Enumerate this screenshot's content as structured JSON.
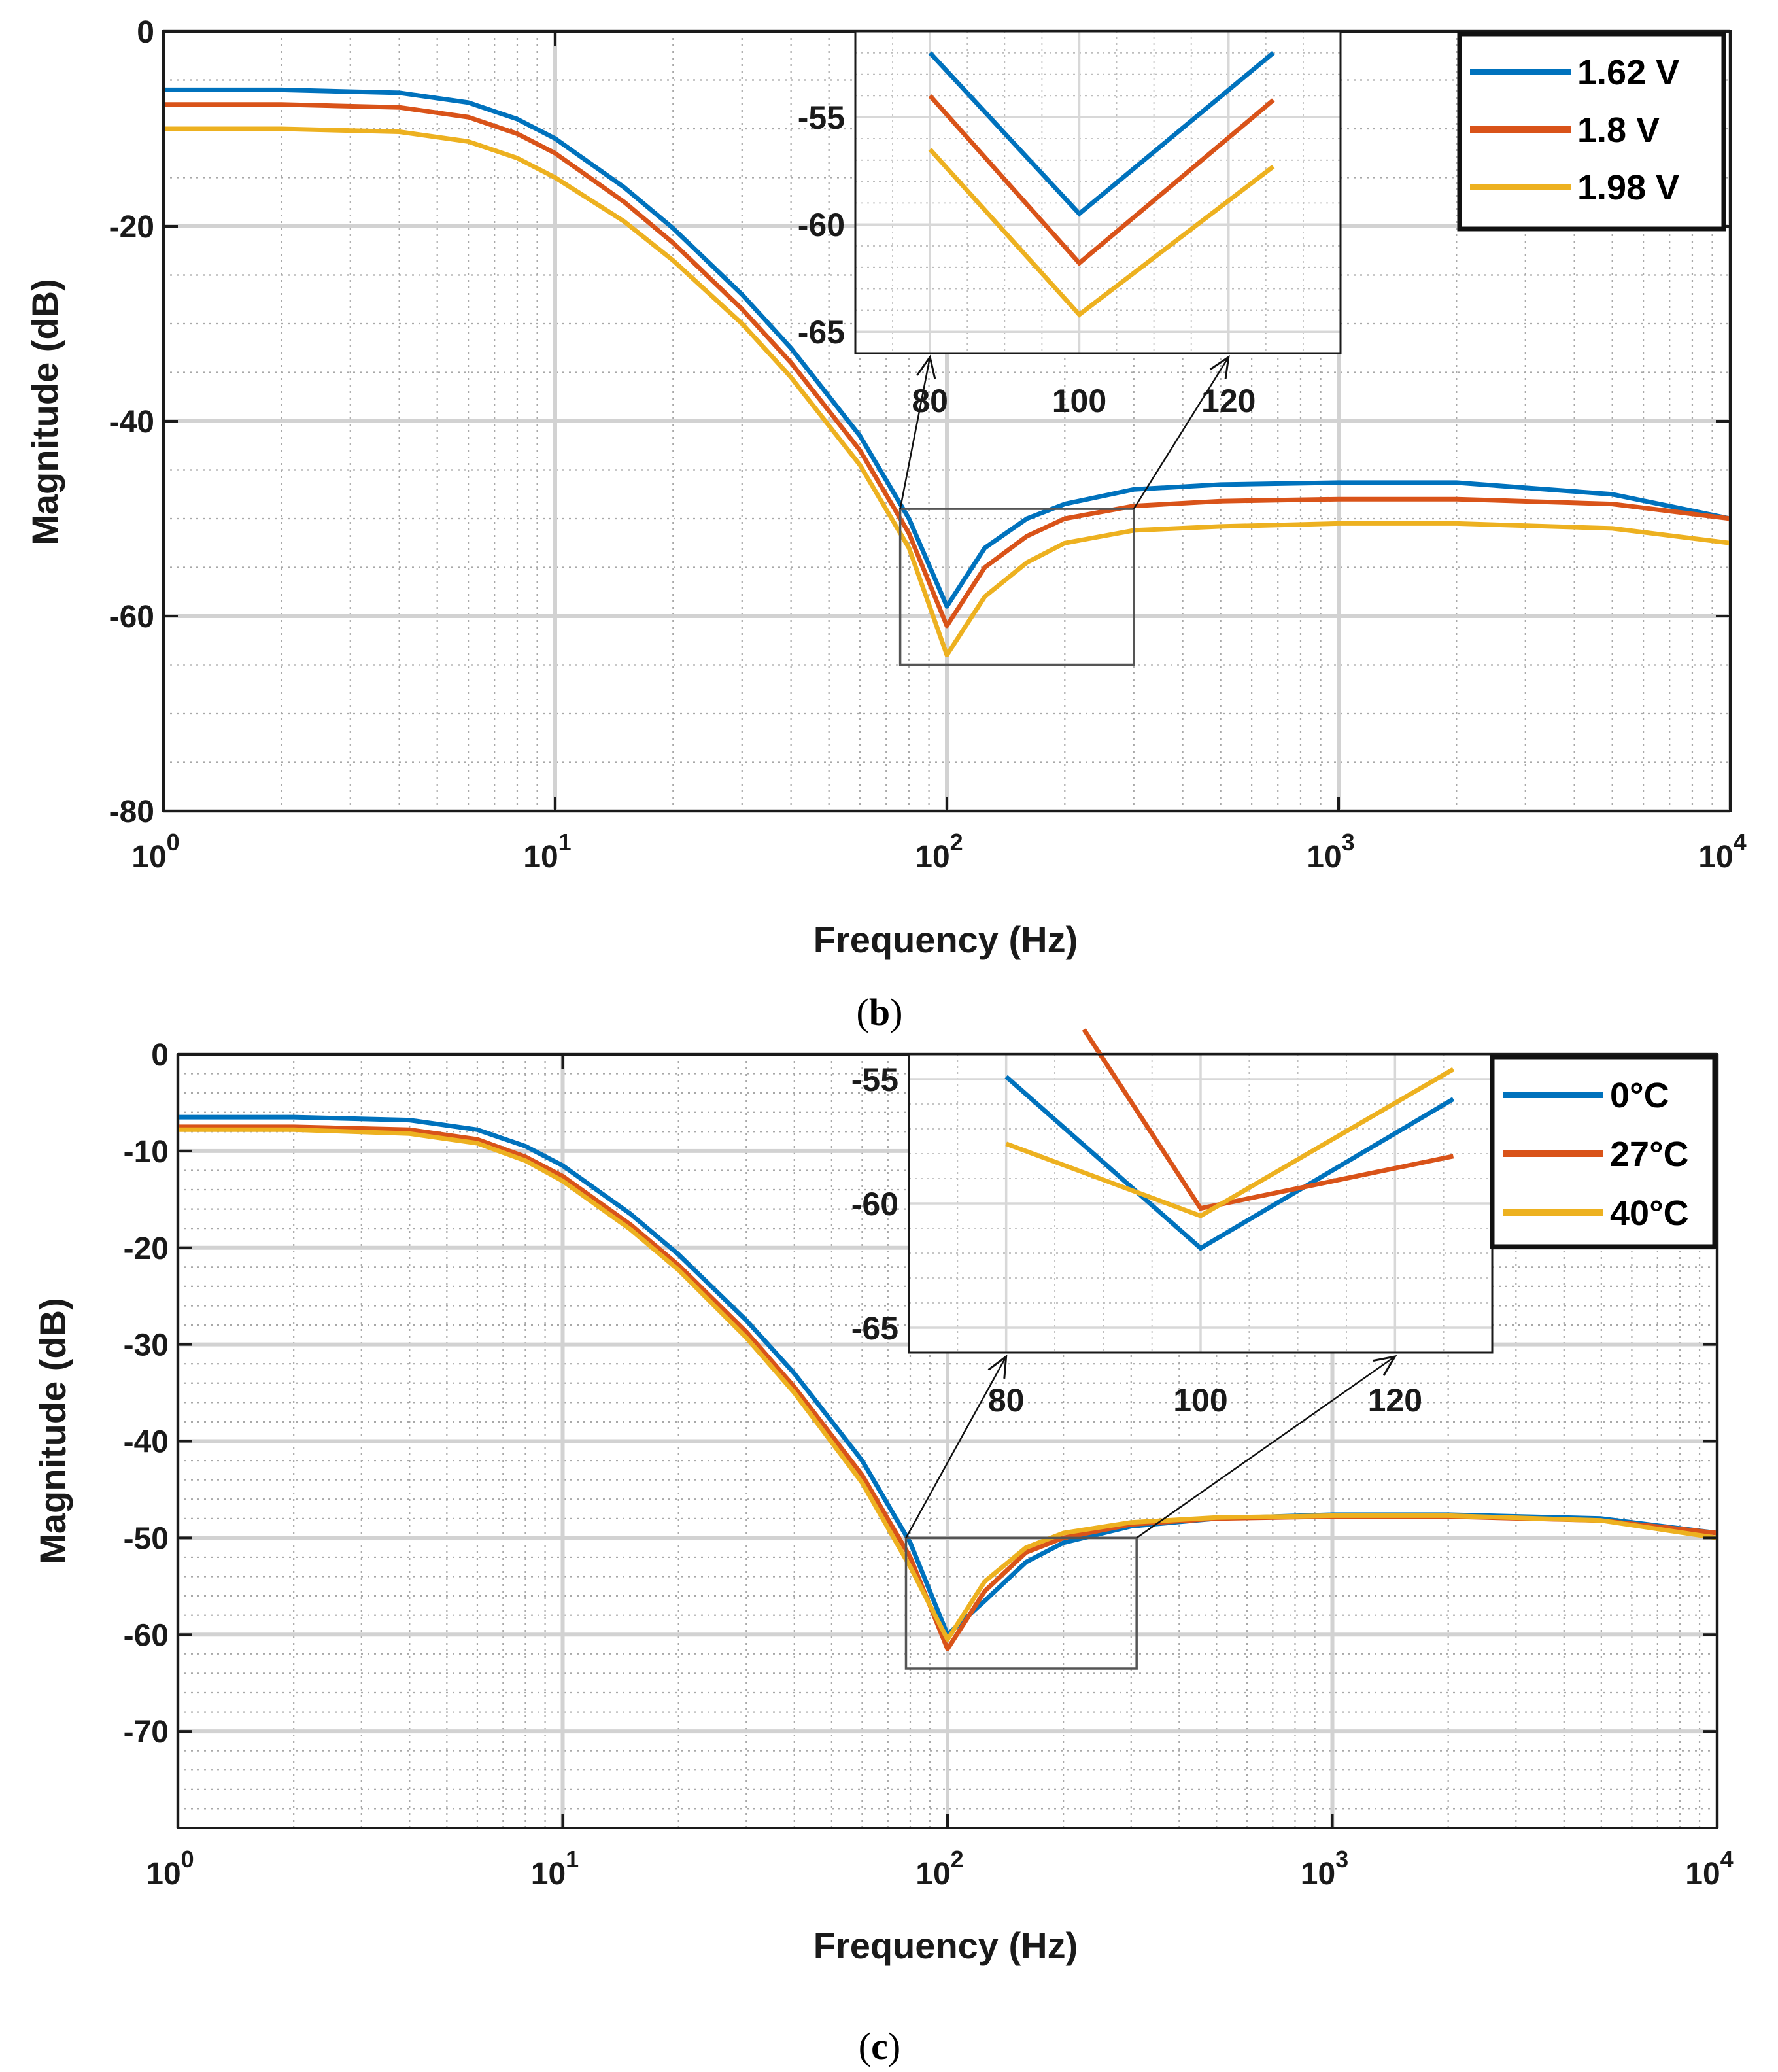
{
  "colors": {
    "blue": "#0072BD",
    "red": "#D95319",
    "yellow": "#EDB120",
    "grid_major": "#d2d2d2",
    "grid_minor": "#a8a8a8",
    "axis": "#1a1a1a"
  },
  "chart_data": [
    {
      "type": "line",
      "caption": "b",
      "xlabel": "Frequency (Hz)",
      "ylabel": "Magnitude (dB)",
      "xscale": "log",
      "xlim": [
        1,
        10000
      ],
      "ylim": [
        -80,
        0
      ],
      "xticks": [
        1,
        10,
        100,
        1000,
        10000
      ],
      "xtick_labels": [
        {
          "base": "10",
          "exp": "0"
        },
        {
          "base": "10",
          "exp": "1"
        },
        {
          "base": "10",
          "exp": "2"
        },
        {
          "base": "10",
          "exp": "3"
        },
        {
          "base": "10",
          "exp": "4"
        }
      ],
      "yticks": [
        0,
        -20,
        -40,
        -60,
        -80
      ],
      "ytick_labels": [
        "0",
        "-20",
        "-40",
        "-60",
        "-80"
      ],
      "ytick_minor_step": 5,
      "grid": true,
      "legend_position": "top-right",
      "series": [
        {
          "name": "1.62 V",
          "color": "#0072BD",
          "x": [
            1,
            2,
            4,
            6,
            8,
            10,
            15,
            20,
            30,
            40,
            60,
            80,
            100,
            125,
            160,
            200,
            300,
            500,
            1000,
            2000,
            5000,
            10000
          ],
          "y": [
            -6.0,
            -6.0,
            -6.3,
            -7.3,
            -9.0,
            -11.0,
            -16.0,
            -20.2,
            -27.0,
            -32.5,
            -41.5,
            -50.0,
            -59.0,
            -53.0,
            -50.0,
            -48.5,
            -47.0,
            -46.5,
            -46.3,
            -46.3,
            -47.5,
            -50.0
          ]
        },
        {
          "name": "1.8 V",
          "color": "#D95319",
          "x": [
            1,
            2,
            4,
            6,
            8,
            10,
            15,
            20,
            30,
            40,
            60,
            80,
            100,
            125,
            160,
            200,
            300,
            500,
            1000,
            2000,
            5000,
            10000
          ],
          "y": [
            -7.5,
            -7.5,
            -7.8,
            -8.8,
            -10.5,
            -12.5,
            -17.5,
            -21.7,
            -28.5,
            -34.0,
            -43.0,
            -51.5,
            -61.0,
            -55.0,
            -51.8,
            -50.0,
            -48.7,
            -48.2,
            -48.0,
            -48.0,
            -48.5,
            -50.0
          ]
        },
        {
          "name": "1.98 V",
          "color": "#EDB120",
          "x": [
            1,
            2,
            4,
            6,
            8,
            10,
            15,
            20,
            30,
            40,
            60,
            80,
            100,
            125,
            160,
            200,
            300,
            500,
            1000,
            2000,
            5000,
            10000
          ],
          "y": [
            -10.0,
            -10.0,
            -10.3,
            -11.3,
            -13.0,
            -15.0,
            -19.5,
            -23.5,
            -30.0,
            -35.5,
            -44.5,
            -53.0,
            -64.0,
            -58.0,
            -54.5,
            -52.5,
            -51.2,
            -50.8,
            -50.5,
            -50.5,
            -51.0,
            -52.5
          ]
        }
      ],
      "zoom_box": {
        "x_range": [
          76,
          300
        ],
        "y_range": [
          -65,
          -49
        ]
      },
      "inset": {
        "xlim": [
          70,
          135
        ],
        "ylim": [
          -66,
          -51
        ],
        "xticks": [
          80,
          100,
          120
        ],
        "xtick_labels": [
          "80",
          "100",
          "120"
        ],
        "yticks": [
          -55,
          -60,
          -65
        ],
        "ytick_labels": [
          "-55",
          "-60",
          "-65"
        ],
        "series": [
          {
            "name": "1.62 V",
            "color": "#0072BD",
            "x": [
              80,
              100,
              126
            ],
            "y": [
              -52.0,
              -59.5,
              -52.0
            ]
          },
          {
            "name": "1.8 V",
            "color": "#D95319",
            "x": [
              80,
              100,
              126
            ],
            "y": [
              -54.0,
              -61.8,
              -54.2
            ]
          },
          {
            "name": "1.98 V",
            "color": "#EDB120",
            "x": [
              80,
              100,
              126
            ],
            "y": [
              -56.5,
              -64.2,
              -57.3
            ]
          }
        ]
      }
    },
    {
      "type": "line",
      "caption": "c",
      "xlabel": "Frequency (Hz)",
      "ylabel": "Magnitude (dB)",
      "xscale": "log",
      "xlim": [
        1,
        10000
      ],
      "ylim": [
        -80,
        0
      ],
      "xticks": [
        1,
        10,
        100,
        1000,
        10000
      ],
      "xtick_labels": [
        {
          "base": "10",
          "exp": "0"
        },
        {
          "base": "10",
          "exp": "1"
        },
        {
          "base": "10",
          "exp": "2"
        },
        {
          "base": "10",
          "exp": "3"
        },
        {
          "base": "10",
          "exp": "4"
        }
      ],
      "yticks": [
        0,
        -10,
        -20,
        -30,
        -40,
        -50,
        -60,
        -70
      ],
      "ytick_labels": [
        "0",
        "-10",
        "-20",
        "-30",
        "-40",
        "-50",
        "-60",
        "-70"
      ],
      "ytick_minor_step": 2,
      "grid": true,
      "legend_position": "top-right",
      "series": [
        {
          "name": "0°C",
          "color": "#0072BD",
          "x": [
            1,
            2,
            4,
            6,
            8,
            10,
            15,
            20,
            30,
            40,
            60,
            80,
            100,
            125,
            160,
            200,
            300,
            500,
            1000,
            2000,
            5000,
            10000
          ],
          "y": [
            -6.5,
            -6.5,
            -6.8,
            -7.8,
            -9.5,
            -11.5,
            -16.5,
            -20.7,
            -27.5,
            -33.0,
            -42.0,
            -50.5,
            -60.0,
            -56.5,
            -52.5,
            -50.5,
            -48.8,
            -48.0,
            -47.6,
            -47.6,
            -48.0,
            -49.5
          ]
        },
        {
          "name": "27°C",
          "color": "#D95319",
          "x": [
            1,
            2,
            4,
            6,
            8,
            10,
            15,
            20,
            30,
            40,
            60,
            80,
            100,
            125,
            160,
            200,
            300,
            500,
            1000,
            2000,
            5000,
            10000
          ],
          "y": [
            -7.5,
            -7.5,
            -7.8,
            -8.8,
            -10.6,
            -12.6,
            -17.6,
            -21.8,
            -28.7,
            -34.4,
            -43.5,
            -52.0,
            -61.5,
            -55.5,
            -51.5,
            -50.0,
            -48.6,
            -48.0,
            -47.8,
            -47.8,
            -48.2,
            -49.5
          ]
        },
        {
          "name": "40°C",
          "color": "#EDB120",
          "x": [
            1,
            2,
            4,
            6,
            8,
            10,
            15,
            20,
            30,
            40,
            60,
            80,
            100,
            125,
            160,
            200,
            300,
            500,
            1000,
            2000,
            5000,
            10000
          ],
          "y": [
            -7.8,
            -7.8,
            -8.2,
            -9.2,
            -11.0,
            -13.1,
            -18.1,
            -22.3,
            -29.3,
            -35.0,
            -44.3,
            -53.0,
            -60.5,
            -54.5,
            -51.0,
            -49.5,
            -48.4,
            -47.9,
            -47.7,
            -47.7,
            -48.2,
            -50.0
          ]
        }
      ],
      "zoom_box": {
        "x_range": [
          78,
          310
        ],
        "y_range": [
          -63.5,
          -50
        ]
      },
      "inset": {
        "xlim": [
          70,
          130
        ],
        "ylim": [
          -66,
          -54
        ],
        "xticks": [
          80,
          100,
          120
        ],
        "xtick_labels": [
          "80",
          "100",
          "120"
        ],
        "yticks": [
          -55,
          -60,
          -65
        ],
        "ytick_labels": [
          "-55",
          "-60",
          "-65"
        ],
        "series": [
          {
            "name": "0°C",
            "color": "#0072BD",
            "x": [
              80,
              100,
              126
            ],
            "y": [
              -54.9,
              -61.8,
              -55.8
            ]
          },
          {
            "name": "27°C",
            "color": "#D95319",
            "x": [
              88,
              100,
              126
            ],
            "y": [
              -53.0,
              -60.2,
              -58.1
            ]
          },
          {
            "name": "40°C",
            "color": "#EDB120",
            "x": [
              80,
              100,
              126
            ],
            "y": [
              -57.6,
              -60.5,
              -54.6
            ]
          }
        ]
      }
    }
  ]
}
